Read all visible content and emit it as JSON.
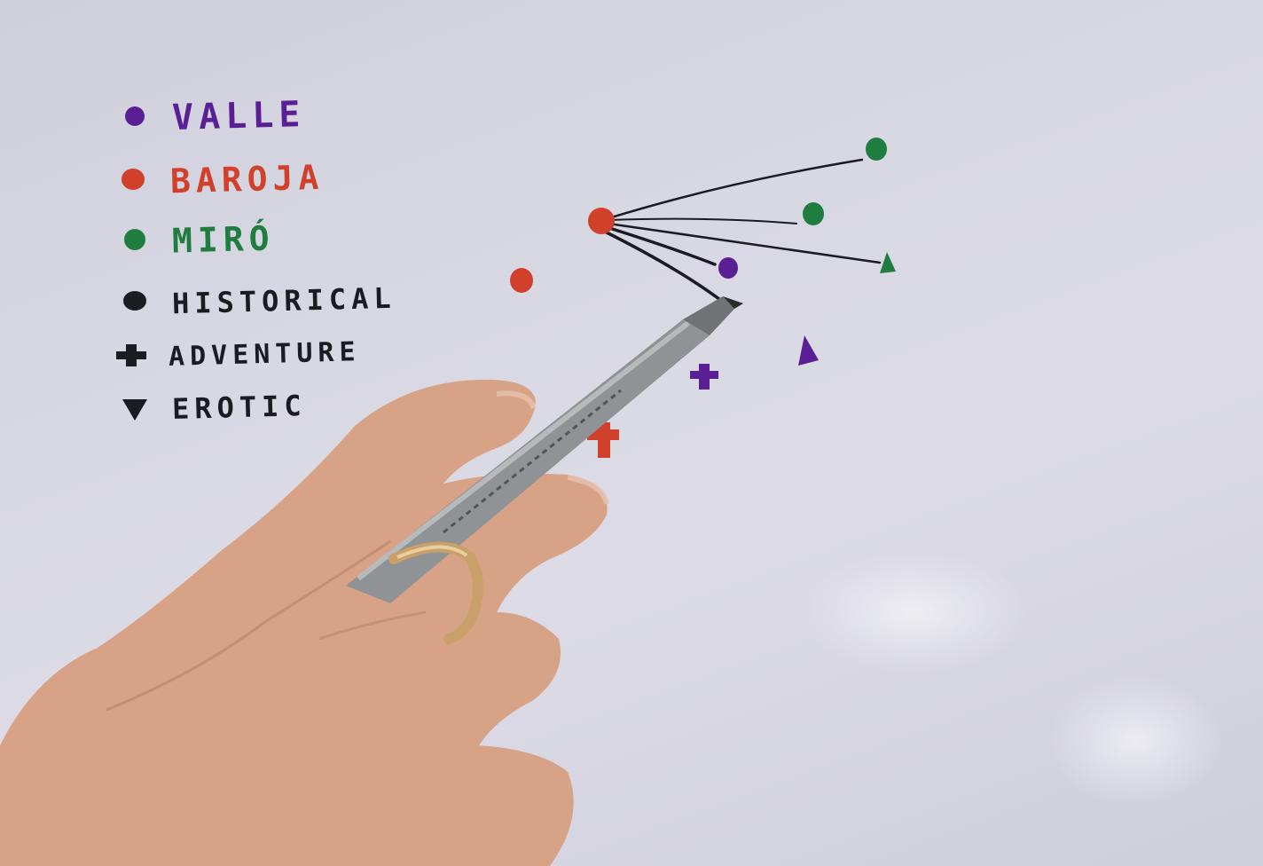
{
  "legend": {
    "authors": [
      {
        "label": "Valle",
        "color": "#5a1f95"
      },
      {
        "label": "Baroja",
        "color": "#d0402b"
      },
      {
        "label": "Miró",
        "color": "#1f7d3f"
      }
    ],
    "genres": [
      {
        "label": "Historical",
        "icon": "circle-icon"
      },
      {
        "label": "Adventure",
        "icon": "plus-icon"
      },
      {
        "label": "Erotic",
        "icon": "triangle-down-icon"
      }
    ]
  },
  "colors": {
    "ink_black": "#1b1b22",
    "board": "#d9d9e4",
    "pen_body": "#8f9396",
    "skin": "#d9a07f",
    "ring": "#c9a06a"
  },
  "objects": [
    "hand-holding-marker",
    "gold-ring"
  ]
}
